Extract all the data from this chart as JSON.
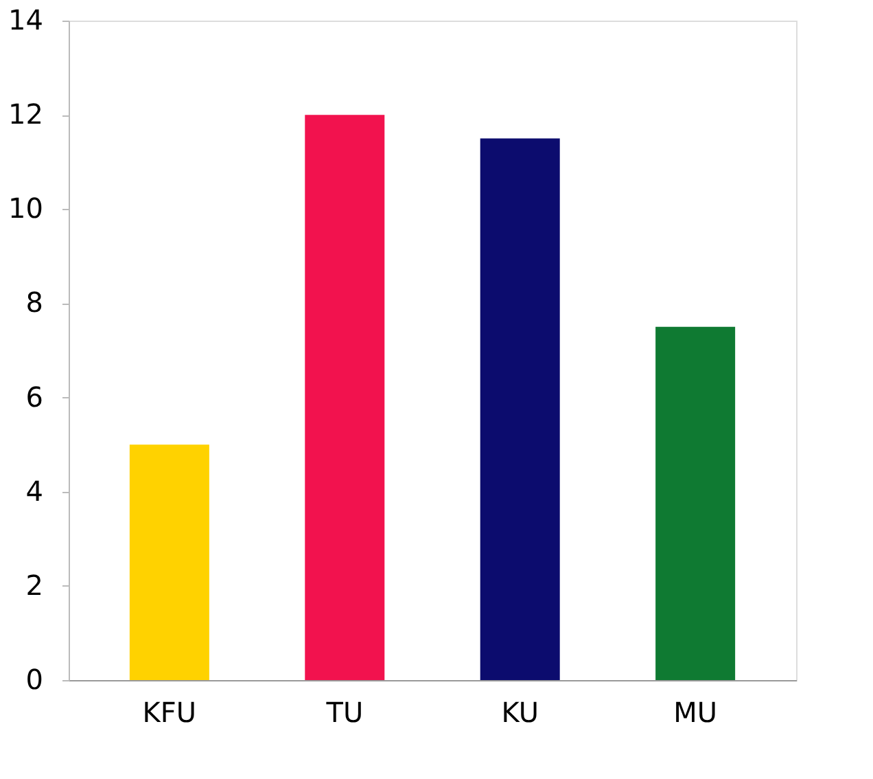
{
  "chart_data": {
    "type": "bar",
    "categories": [
      "KFU",
      "TU",
      "KU",
      "MU"
    ],
    "values": [
      5,
      12,
      11.5,
      7.5
    ],
    "colors": [
      "#ffd200",
      "#f2124e",
      "#0c0c6e",
      "#0f7a32"
    ],
    "ylim": [
      0,
      14
    ],
    "yticks": [
      0,
      2,
      4,
      6,
      8,
      10,
      12,
      14
    ],
    "grid": false,
    "legend": false
  }
}
